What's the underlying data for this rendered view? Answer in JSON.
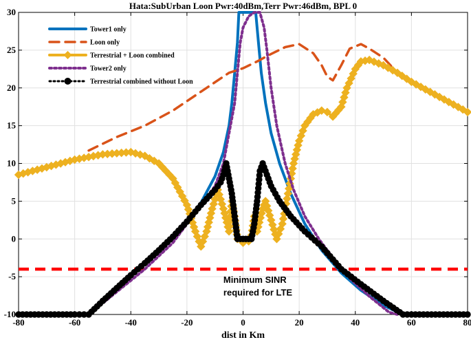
{
  "chart_data": {
    "type": "line",
    "title": "Hata:SubUrban Loon Pwr:40dBm,Terr Pwr:46dBm, BPL 0",
    "xlabel": "dist in Km",
    "ylabel": "",
    "xlim": [
      -80,
      80
    ],
    "ylim": [
      -10,
      30
    ],
    "xticks": [
      -80,
      -60,
      -40,
      -20,
      0,
      20,
      40,
      60,
      80
    ],
    "yticks": [
      -10,
      -5,
      0,
      5,
      10,
      15,
      20,
      25,
      30
    ],
    "grid": true,
    "legend_position": "top-left",
    "series": [
      {
        "name": "Tower1 only",
        "color": "#0072BD",
        "style": "solid",
        "points": [
          [
            -55,
            -10
          ],
          [
            -50,
            -8.2
          ],
          [
            -45,
            -6.5
          ],
          [
            -40,
            -4.8
          ],
          [
            -35,
            -3.2
          ],
          [
            -30,
            -1.5
          ],
          [
            -25,
            0.3
          ],
          [
            -20,
            2.3
          ],
          [
            -15,
            4.8
          ],
          [
            -10,
            8.3
          ],
          [
            -7,
            11.5
          ],
          [
            -5,
            15
          ],
          [
            -4,
            18
          ],
          [
            -3,
            22
          ],
          [
            -2,
            26
          ],
          [
            -1.5,
            30
          ],
          [
            1,
            30
          ],
          [
            3,
            30
          ],
          [
            4.5,
            30
          ],
          [
            5.5,
            26
          ],
          [
            6.5,
            22
          ],
          [
            8,
            18
          ],
          [
            10,
            14
          ],
          [
            13,
            10
          ],
          [
            17,
            6
          ],
          [
            22,
            2
          ],
          [
            28,
            -1.5
          ],
          [
            35,
            -4.5
          ],
          [
            42,
            -6.8
          ],
          [
            50,
            -8.8
          ],
          [
            57,
            -10
          ]
        ]
      },
      {
        "name": "Loon only",
        "color": "#D95319",
        "style": "dashed",
        "points": [
          [
            -55,
            11.7
          ],
          [
            -45,
            13.5
          ],
          [
            -35,
            15
          ],
          [
            -25,
            17
          ],
          [
            -15,
            19.5
          ],
          [
            -5,
            22
          ],
          [
            0,
            22.6
          ],
          [
            5,
            23.5
          ],
          [
            10,
            24.5
          ],
          [
            15,
            25.4
          ],
          [
            20,
            25.8
          ],
          [
            25,
            24.6
          ],
          [
            28,
            23
          ],
          [
            30,
            21.5
          ],
          [
            32,
            21
          ],
          [
            35,
            23
          ],
          [
            38,
            25.2
          ],
          [
            42,
            25.8
          ],
          [
            45,
            25.2
          ],
          [
            50,
            24
          ],
          [
            55,
            22
          ]
        ]
      },
      {
        "name": "Terrestrial + Loon combined",
        "color": "#EDB120",
        "style": "solid-marker",
        "points": [
          [
            -80,
            8.5
          ],
          [
            -70,
            9.5
          ],
          [
            -60,
            10.5
          ],
          [
            -50,
            11.2
          ],
          [
            -40,
            11.5
          ],
          [
            -35,
            11
          ],
          [
            -30,
            10
          ],
          [
            -25,
            8
          ],
          [
            -20,
            4.5
          ],
          [
            -17,
            1
          ],
          [
            -15,
            -1
          ],
          [
            -13,
            1
          ],
          [
            -11,
            4
          ],
          [
            -9,
            6.5
          ],
          [
            -7,
            4
          ],
          [
            -5,
            1
          ],
          [
            -4,
            5
          ],
          [
            -3,
            3
          ],
          [
            -2,
            0
          ],
          [
            0,
            -0.5
          ],
          [
            2,
            -0.3
          ],
          [
            3,
            0.5
          ],
          [
            4,
            3
          ],
          [
            5,
            1
          ],
          [
            7,
            4
          ],
          [
            8,
            5
          ],
          [
            10,
            2.5
          ],
          [
            12,
            0
          ],
          [
            14,
            2
          ],
          [
            16,
            6
          ],
          [
            18,
            10
          ],
          [
            20,
            13
          ],
          [
            22,
            15
          ],
          [
            25,
            16.5
          ],
          [
            28,
            17
          ],
          [
            30,
            16.8
          ],
          [
            32,
            16.2
          ],
          [
            35,
            17.5
          ],
          [
            37,
            20
          ],
          [
            40,
            22.5
          ],
          [
            42,
            23.5
          ],
          [
            45,
            23.7
          ],
          [
            50,
            23
          ],
          [
            55,
            22
          ],
          [
            60,
            20.8
          ],
          [
            65,
            19.8
          ],
          [
            70,
            18.8
          ],
          [
            75,
            17.8
          ],
          [
            80,
            16.8
          ]
        ]
      },
      {
        "name": "Tower2 only",
        "color": "#7E2F8E",
        "style": "dotted",
        "points": [
          [
            -55,
            -10
          ],
          [
            -45,
            -7
          ],
          [
            -35,
            -4
          ],
          [
            -25,
            -0.5
          ],
          [
            -20,
            2
          ],
          [
            -15,
            4.5
          ],
          [
            -10,
            7
          ],
          [
            -7,
            10
          ],
          [
            -5,
            14
          ],
          [
            -3,
            18
          ],
          [
            -2,
            22
          ],
          [
            -1,
            26
          ],
          [
            0,
            28
          ],
          [
            2,
            29.5
          ],
          [
            4,
            30
          ],
          [
            6,
            30
          ],
          [
            7.5,
            28
          ],
          [
            8.5,
            25
          ],
          [
            10,
            20
          ],
          [
            12,
            15
          ],
          [
            15,
            10
          ],
          [
            18,
            6.5
          ],
          [
            22,
            3
          ],
          [
            27,
            0
          ],
          [
            32,
            -2.5
          ],
          [
            38,
            -5.2
          ],
          [
            45,
            -7.6
          ],
          [
            52,
            -9.7
          ],
          [
            55,
            -10
          ]
        ]
      },
      {
        "name": "Terrestrial combined without Loon",
        "color": "#000000",
        "style": "dotted-marker",
        "points": [
          [
            -80,
            -10
          ],
          [
            -70,
            -10
          ],
          [
            -60,
            -10
          ],
          [
            -55,
            -10
          ],
          [
            -50,
            -8.2
          ],
          [
            -45,
            -6.5
          ],
          [
            -40,
            -4.8
          ],
          [
            -35,
            -3.2
          ],
          [
            -30,
            -1.5
          ],
          [
            -25,
            0.3
          ],
          [
            -20,
            2.3
          ],
          [
            -15,
            4.5
          ],
          [
            -10,
            6.5
          ],
          [
            -8,
            7.5
          ],
          [
            -7,
            8.5
          ],
          [
            -6,
            10
          ],
          [
            -5,
            8
          ],
          [
            -4,
            6
          ],
          [
            -3,
            3
          ],
          [
            -2,
            0
          ],
          [
            -1,
            0
          ],
          [
            0,
            0
          ],
          [
            1,
            0
          ],
          [
            2,
            0
          ],
          [
            3,
            0
          ],
          [
            4,
            2
          ],
          [
            5,
            5
          ],
          [
            6,
            9
          ],
          [
            7,
            10
          ],
          [
            8,
            9
          ],
          [
            10,
            7
          ],
          [
            13,
            5
          ],
          [
            17,
            3
          ],
          [
            22,
            1
          ],
          [
            28,
            -1
          ],
          [
            35,
            -4
          ],
          [
            42,
            -6
          ],
          [
            50,
            -8.2
          ],
          [
            57,
            -10
          ],
          [
            60,
            -10
          ],
          [
            70,
            -10
          ],
          [
            80,
            -10
          ]
        ]
      }
    ],
    "hlines": [
      {
        "y": -4,
        "color": "#FF0000",
        "style": "dashed"
      }
    ],
    "annotations": [
      {
        "text": "Minimum SINR",
        "x": -7,
        "y": -5.8
      },
      {
        "text": "required for LTE",
        "x": -7,
        "y": -7.5
      }
    ]
  }
}
